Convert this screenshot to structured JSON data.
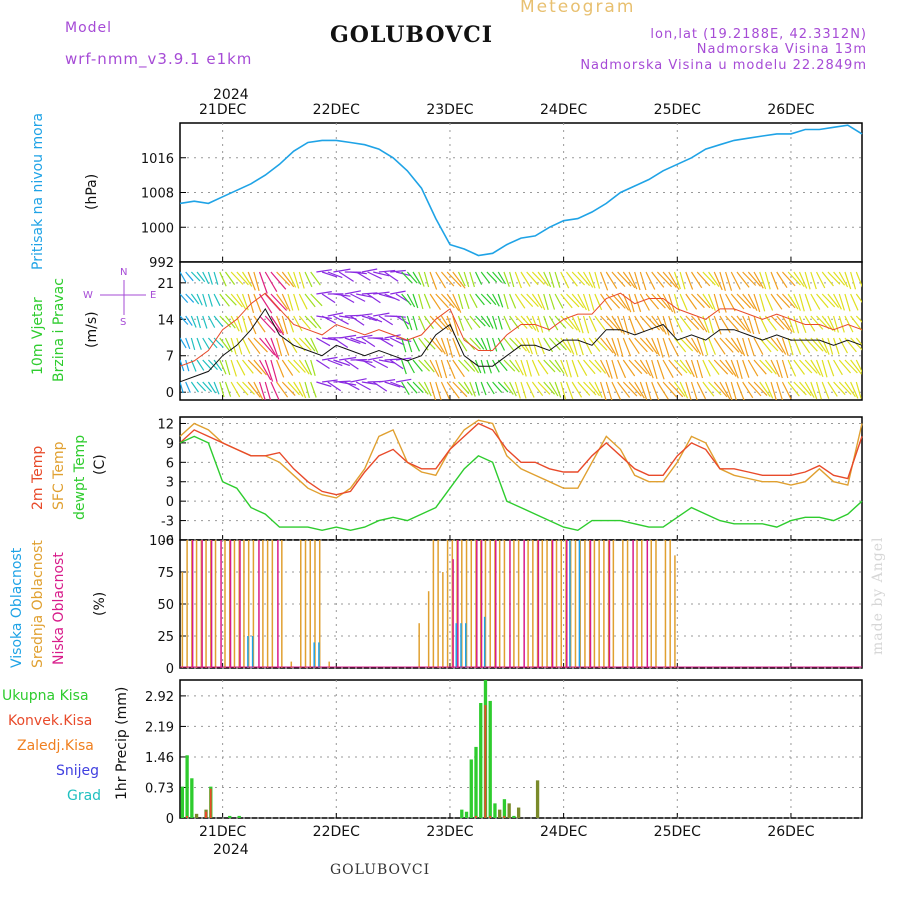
{
  "header": {
    "model_label": "Model",
    "model_name": "wrf-nmm_v3.9.1 e1km",
    "title": "GOLUBOVCI",
    "subtitle": "Meteogram",
    "lonlat": "lon,lat (19.2188E, 42.3312N)",
    "elevation": "Nadmorska Visina 13m",
    "model_elevation": "Nadmorska Visina u modelu 22.2849m",
    "year": "2024",
    "footer_title": "GOLUBOVCI",
    "watermark": "made by Angel"
  },
  "colors": {
    "pressure": "#1fa3e6",
    "wind_speed": "#111111",
    "gust": "#e84a2a",
    "temp2m": "#e84a2a",
    "sfc_temp": "#e0a030",
    "dewpoint": "#2ecc2e",
    "high_cloud": "#1fa3e6",
    "mid_cloud": "#e0a030",
    "low_cloud": "#d81b8a",
    "precip_total": "#2ecc2e",
    "precip_conv": "#e84a2a",
    "precip_frz": "#f08020",
    "snow": "#4040e0",
    "grad": "#20c0c0"
  },
  "chart_data": [
    {
      "type": "line",
      "panel": "pressure",
      "ylabel": [
        "Pritisak na nivou mora",
        "(hPa)"
      ],
      "x_ticks": [
        "21DEC",
        "22DEC",
        "23DEC",
        "24DEC",
        "25DEC",
        "26DEC"
      ],
      "ylim": [
        992,
        1024
      ],
      "y_ticks": [
        992,
        1000,
        1008,
        1016
      ],
      "grid": true,
      "x_hours": [
        0,
        3,
        6,
        9,
        12,
        15,
        18,
        21,
        24,
        27,
        30,
        33,
        36,
        39,
        42,
        45,
        48,
        51,
        54,
        57,
        60,
        63,
        66,
        69,
        72,
        75,
        78,
        81,
        84,
        87,
        90,
        93,
        96,
        99,
        102,
        105,
        108,
        111,
        114,
        117,
        120,
        123,
        126,
        129,
        132,
        135,
        138,
        141,
        144
      ],
      "series": [
        {
          "values": [
            1005.5,
            1006,
            1005.5,
            1007,
            1008.5,
            1010,
            1012,
            1014.5,
            1017.5,
            1019.5,
            1020,
            1020,
            1019.5,
            1019,
            1018,
            1016,
            1013,
            1009,
            1002,
            996,
            995,
            993.5,
            994,
            996,
            997.5,
            998,
            1000,
            1001.5,
            1002,
            1003.5,
            1005.5,
            1008,
            1009.5,
            1011,
            1013,
            1014.5,
            1016,
            1018,
            1019,
            1020,
            1020.5,
            1021,
            1021.5,
            1021.5,
            1022.5,
            1022.5,
            1023,
            1023.5,
            1021.5
          ]
        }
      ]
    },
    {
      "type": "line",
      "panel": "wind",
      "ylabel": [
        "10m Vjetar",
        "Brzina i Pravac",
        "(m/s)"
      ],
      "compass": {
        "n": "N",
        "s": "S",
        "w": "W",
        "e": "E"
      },
      "ylim": [
        -1.5,
        25
      ],
      "y_ticks": [
        0,
        7,
        14,
        21
      ],
      "grid": true,
      "x_hours": [
        0,
        3,
        6,
        9,
        12,
        15,
        18,
        21,
        24,
        27,
        30,
        33,
        36,
        39,
        42,
        45,
        48,
        51,
        54,
        57,
        60,
        63,
        66,
        69,
        72,
        75,
        78,
        81,
        84,
        87,
        90,
        93,
        96,
        99,
        102,
        105,
        108,
        111,
        114,
        117,
        120,
        123,
        126,
        129,
        132,
        135,
        138,
        141,
        144
      ],
      "series": [
        {
          "name": "speed",
          "values": [
            2,
            3,
            4,
            7,
            9,
            12,
            16,
            11,
            9,
            8,
            7,
            9,
            8,
            7,
            8,
            7,
            6,
            7,
            11,
            13,
            7,
            5,
            5,
            7,
            9,
            9,
            8,
            10,
            10,
            9,
            12,
            12,
            11,
            12,
            13,
            10,
            11,
            10,
            12,
            12,
            11,
            10,
            11,
            10,
            10,
            10,
            9,
            10,
            9
          ]
        },
        {
          "name": "gust",
          "values": [
            5,
            6,
            8,
            12,
            14,
            17,
            19,
            16,
            13,
            12,
            11,
            13,
            12,
            11,
            12,
            11,
            10,
            11,
            14,
            16,
            10,
            8,
            8,
            11,
            13,
            13,
            12,
            14,
            15,
            15,
            18,
            19,
            17,
            18,
            18,
            16,
            15,
            14,
            16,
            16,
            15,
            14,
            15,
            14,
            13,
            13,
            12,
            13,
            12
          ]
        }
      ]
    },
    {
      "type": "line",
      "panel": "temperature",
      "ylabel": [
        "2m Temp",
        "SFC Temp",
        "dewpt Temp",
        "(C)"
      ],
      "ylim": [
        -6,
        13
      ],
      "y_ticks": [
        -6,
        -3,
        0,
        3,
        6,
        9,
        12
      ],
      "grid": true,
      "x_hours": [
        0,
        3,
        6,
        9,
        12,
        15,
        18,
        21,
        24,
        27,
        30,
        33,
        36,
        39,
        42,
        45,
        48,
        51,
        54,
        57,
        60,
        63,
        66,
        69,
        72,
        75,
        78,
        81,
        84,
        87,
        90,
        93,
        96,
        99,
        102,
        105,
        108,
        111,
        114,
        117,
        120,
        123,
        126,
        129,
        132,
        135,
        138,
        141,
        144
      ],
      "series": [
        {
          "name": "2m Temp",
          "values": [
            9,
            11,
            10,
            9,
            8,
            7,
            7,
            7.5,
            5,
            3,
            1.5,
            1,
            1.5,
            4.5,
            7,
            8,
            6,
            5,
            5,
            8,
            10,
            12,
            11,
            8,
            6,
            6,
            5,
            4.5,
            4.5,
            7,
            9,
            7,
            5,
            4,
            4,
            7,
            9,
            8,
            5,
            5,
            4.5,
            4,
            4,
            4,
            4.5,
            5.5,
            4,
            3.5,
            10
          ]
        },
        {
          "name": "SFC Temp",
          "values": [
            10,
            12,
            11,
            9,
            8,
            7,
            7,
            6,
            4,
            2,
            1,
            0.5,
            2,
            5,
            10,
            11,
            6,
            4.5,
            4,
            8,
            11,
            12.5,
            12,
            7,
            5,
            4,
            3,
            2,
            2,
            6,
            10,
            8,
            4,
            3,
            3,
            6,
            10,
            9,
            5,
            4,
            3.5,
            3,
            3,
            2.5,
            3,
            5,
            3,
            2.5,
            12
          ]
        },
        {
          "name": "dewpt Temp",
          "values": [
            9,
            10,
            9,
            3,
            2,
            -1,
            -2,
            -4,
            -4,
            -4,
            -4.5,
            -4,
            -4.5,
            -4,
            -3,
            -2.5,
            -3,
            -2,
            -1,
            2,
            5,
            7,
            6,
            0,
            -1,
            -2,
            -3,
            -4,
            -4.5,
            -3,
            -3,
            -3,
            -3.5,
            -4,
            -4,
            -2.5,
            -1,
            -2,
            -3,
            -3.5,
            -3.5,
            -3.5,
            -4,
            -3,
            -2.5,
            -2.5,
            -3,
            -2,
            0
          ]
        }
      ]
    },
    {
      "type": "bar",
      "panel": "cloud",
      "ylabel": [
        "Visoka Oblacnost",
        "Srednja Oblacnost",
        "Niska Oblacnost",
        "(%)"
      ],
      "ylim": [
        0,
        100
      ],
      "y_ticks": [
        0,
        25,
        50,
        75,
        100
      ],
      "grid": true,
      "series": [
        {
          "name": "Visoka Oblacnost",
          "events": [
            [
              14,
              25
            ],
            [
              15,
              25
            ],
            [
              28,
              20
            ],
            [
              29,
              20
            ],
            [
              58,
              35
            ],
            [
              59,
              35
            ],
            [
              60,
              35
            ],
            [
              64,
              40
            ],
            [
              82,
              100
            ],
            [
              84,
              100
            ]
          ]
        },
        {
          "name": "Srednja Oblacnost",
          "events": [
            [
              0,
              75
            ],
            [
              1,
              100
            ],
            [
              2,
              100
            ],
            [
              3,
              100
            ],
            [
              4,
              100
            ],
            [
              5,
              100
            ],
            [
              6,
              100
            ],
            [
              7,
              100
            ],
            [
              9,
              100
            ],
            [
              10,
              100
            ],
            [
              11,
              100
            ],
            [
              12,
              100
            ],
            [
              13,
              100
            ],
            [
              14,
              100
            ],
            [
              15,
              100
            ],
            [
              17,
              100
            ],
            [
              18,
              100
            ],
            [
              19,
              100
            ],
            [
              21,
              100
            ],
            [
              23,
              5
            ],
            [
              25,
              100
            ],
            [
              26,
              100
            ],
            [
              27,
              100
            ],
            [
              28,
              100
            ],
            [
              29,
              100
            ],
            [
              31,
              5
            ],
            [
              50,
              35
            ],
            [
              52,
              60
            ],
            [
              53,
              100
            ],
            [
              54,
              100
            ],
            [
              55,
              75
            ],
            [
              56,
              100
            ],
            [
              57,
              100
            ],
            [
              58,
              100
            ],
            [
              59,
              100
            ],
            [
              60,
              100
            ],
            [
              61,
              100
            ],
            [
              62,
              100
            ],
            [
              63,
              100
            ],
            [
              64,
              100
            ],
            [
              65,
              100
            ],
            [
              66,
              100
            ],
            [
              67,
              100
            ],
            [
              68,
              100
            ],
            [
              70,
              100
            ],
            [
              71,
              100
            ],
            [
              73,
              100
            ],
            [
              74,
              100
            ],
            [
              75,
              100
            ],
            [
              76,
              100
            ],
            [
              77,
              100
            ],
            [
              78,
              100
            ],
            [
              79,
              100
            ],
            [
              80,
              100
            ],
            [
              81,
              100
            ],
            [
              82,
              100
            ],
            [
              83,
              100
            ],
            [
              84,
              100
            ],
            [
              85,
              100
            ],
            [
              86,
              100
            ],
            [
              87,
              100
            ],
            [
              88,
              100
            ],
            [
              89,
              100
            ],
            [
              90,
              100
            ],
            [
              91,
              100
            ],
            [
              93,
              100
            ],
            [
              94,
              100
            ],
            [
              96,
              100
            ],
            [
              97,
              100
            ],
            [
              99,
              100
            ],
            [
              100,
              100
            ],
            [
              102,
              100
            ],
            [
              103,
              100
            ],
            [
              104,
              88
            ]
          ]
        },
        {
          "name": "Niska Oblacnost",
          "events": [
            [
              2,
              100
            ],
            [
              4,
              100
            ],
            [
              6,
              100
            ],
            [
              8,
              100
            ],
            [
              10,
              100
            ],
            [
              12,
              100
            ],
            [
              16,
              100
            ],
            [
              20,
              100
            ],
            [
              57,
              85
            ],
            [
              58,
              100
            ],
            [
              62,
              100
            ],
            [
              63,
              100
            ],
            [
              66,
              100
            ],
            [
              69,
              100
            ],
            [
              72,
              100
            ],
            [
              75,
              100
            ],
            [
              78,
              100
            ],
            [
              81,
              100
            ],
            [
              86,
              100
            ],
            [
              90,
              100
            ],
            [
              95,
              100
            ],
            [
              98,
              100
            ]
          ]
        }
      ]
    },
    {
      "type": "bar",
      "panel": "precip",
      "ylabel": [
        "1hr Precip (mm)"
      ],
      "legend": [
        "Ukupna Kisa",
        "Konvek.Kisa",
        "Zaledj.Kisa",
        "Snijeg",
        "Grad"
      ],
      "x_ticks": [
        "21DEC",
        "22DEC",
        "23DEC",
        "24DEC",
        "25DEC",
        "26DEC"
      ],
      "ylim": [
        0,
        3.3
      ],
      "y_ticks": [
        0,
        0.73,
        1.46,
        2.19,
        2.92
      ],
      "grid": true,
      "series": [
        {
          "name": "Ukupna Kisa",
          "events": [
            [
              0,
              0.75
            ],
            [
              1,
              1.5
            ],
            [
              2,
              0.95
            ],
            [
              3,
              0.1
            ],
            [
              5,
              0.2
            ],
            [
              6,
              0.75
            ],
            [
              10,
              0.05
            ],
            [
              12,
              0.05
            ],
            [
              59,
              0.2
            ],
            [
              60,
              0.15
            ],
            [
              61,
              1.4
            ],
            [
              62,
              1.7
            ],
            [
              63,
              2.75
            ],
            [
              64,
              3.3
            ],
            [
              65,
              2.8
            ],
            [
              66,
              0.35
            ],
            [
              67,
              0.2
            ],
            [
              68,
              0.45
            ],
            [
              69,
              0.35
            ],
            [
              70,
              0.05
            ],
            [
              71,
              0.25
            ],
            [
              75,
              0.9
            ]
          ]
        },
        {
          "name": "Konvek.Kisa",
          "events": [
            [
              1,
              0.05
            ],
            [
              5,
              0.15
            ],
            [
              6,
              0.7
            ],
            [
              62,
              0.05
            ],
            [
              64,
              2.7
            ],
            [
              65,
              0.05
            ],
            [
              68,
              0.05
            ]
          ]
        }
      ]
    }
  ]
}
